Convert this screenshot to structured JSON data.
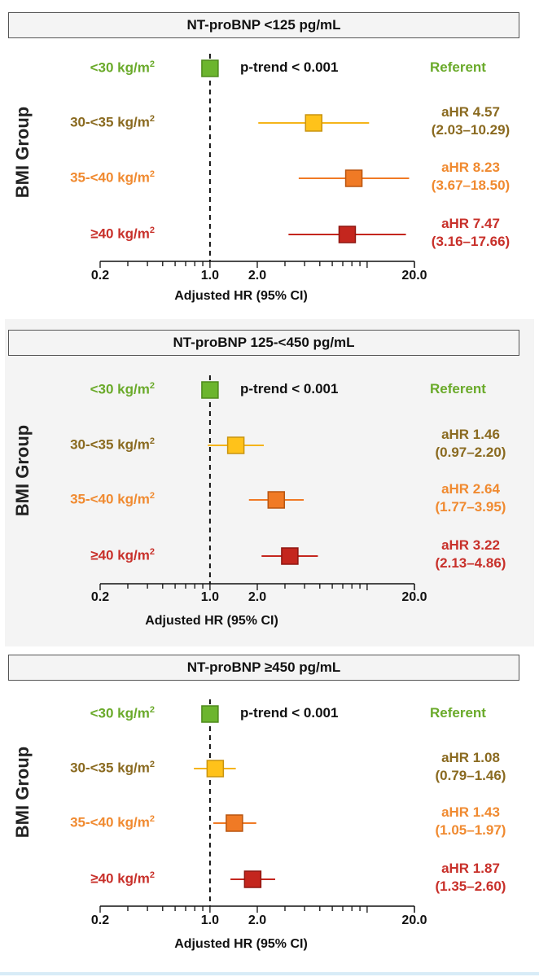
{
  "colors": {
    "lt30": "#6aaa2a",
    "b30_35": "#8a6a20",
    "b35_40": "#f08a30",
    "ge40": "#c8302a",
    "marker_lt30": "#6cb52e",
    "marker_30_35": "#ffc21a",
    "marker_35_40": "#f07a25",
    "marker_ge40": "#c4261e"
  },
  "chart_data": [
    {
      "type": "forest",
      "title": "NT-proBNP <125 pg/mL",
      "ylabel": "BMI Group",
      "xlabel": "Adjusted HR (95% CI)",
      "xscale": "log",
      "xlim": [
        0.2,
        20.0
      ],
      "xticks": [
        "0.2",
        "1.0",
        "2.0",
        "20.0"
      ],
      "p_trend": "p-trend < 0.001",
      "rows": [
        {
          "label": "<30 kg/m",
          "sup": "2",
          "hr": 1.0,
          "lo": null,
          "hi": null,
          "stat_line1": "Referent",
          "stat_line2": ""
        },
        {
          "label": "30-<35 kg/m",
          "sup": "2",
          "hr": 4.57,
          "lo": 2.03,
          "hi": 10.29,
          "stat_line1": "aHR 4.57",
          "stat_line2": "(2.03–10.29)"
        },
        {
          "label": "35-<40 kg/m",
          "sup": "2",
          "hr": 8.23,
          "lo": 3.67,
          "hi": 18.5,
          "stat_line1": "aHR 8.23",
          "stat_line2": "(3.67–18.50)"
        },
        {
          "label": "≥40 kg/m",
          "sup": "2",
          "hr": 7.47,
          "lo": 3.16,
          "hi": 17.66,
          "stat_line1": "aHR 7.47",
          "stat_line2": "(3.16–17.66)"
        }
      ]
    },
    {
      "type": "forest",
      "title": "NT-proBNP 125-<450 pg/mL",
      "ylabel": "BMI Group",
      "xlabel": "Adjusted HR (95% CI)",
      "xscale": "log",
      "xlim": [
        0.2,
        20.0
      ],
      "xticks": [
        "0.2",
        "1.0",
        "2.0",
        "20.0"
      ],
      "p_trend": "p-trend < 0.001",
      "rows": [
        {
          "label": "<30 kg/m",
          "sup": "2",
          "hr": 1.0,
          "lo": null,
          "hi": null,
          "stat_line1": "Referent",
          "stat_line2": ""
        },
        {
          "label": "30-<35 kg/m",
          "sup": "2",
          "hr": 1.46,
          "lo": 0.97,
          "hi": 2.2,
          "stat_line1": "aHR 1.46",
          "stat_line2": "(0.97–2.20)"
        },
        {
          "label": "35-<40 kg/m",
          "sup": "2",
          "hr": 2.64,
          "lo": 1.77,
          "hi": 3.95,
          "stat_line1": "aHR 2.64",
          "stat_line2": "(1.77–3.95)"
        },
        {
          "label": "≥40 kg/m",
          "sup": "2",
          "hr": 3.22,
          "lo": 2.13,
          "hi": 4.86,
          "stat_line1": "aHR 3.22",
          "stat_line2": "(2.13–4.86)"
        }
      ]
    },
    {
      "type": "forest",
      "title": "NT-proBNP ≥450 pg/mL",
      "ylabel": "BMI Group",
      "xlabel": "Adjusted HR (95% CI)",
      "xscale": "log",
      "xlim": [
        0.2,
        20.0
      ],
      "xticks": [
        "0.2",
        "1.0",
        "2.0",
        "20.0"
      ],
      "p_trend": "p-trend < 0.001",
      "rows": [
        {
          "label": "<30 kg/m",
          "sup": "2",
          "hr": 1.0,
          "lo": null,
          "hi": null,
          "stat_line1": "Referent",
          "stat_line2": ""
        },
        {
          "label": "30-<35 kg/m",
          "sup": "2",
          "hr": 1.08,
          "lo": 0.79,
          "hi": 1.46,
          "stat_line1": "aHR 1.08",
          "stat_line2": "(0.79–1.46)"
        },
        {
          "label": "35-<40 kg/m",
          "sup": "2",
          "hr": 1.43,
          "lo": 1.05,
          "hi": 1.97,
          "stat_line1": "aHR 1.43",
          "stat_line2": "(1.05–1.97)"
        },
        {
          "label": "≥40 kg/m",
          "sup": "2",
          "hr": 1.87,
          "lo": 1.35,
          "hi": 2.6,
          "stat_line1": "aHR 1.87",
          "stat_line2": "(1.35–2.60)"
        }
      ]
    }
  ]
}
